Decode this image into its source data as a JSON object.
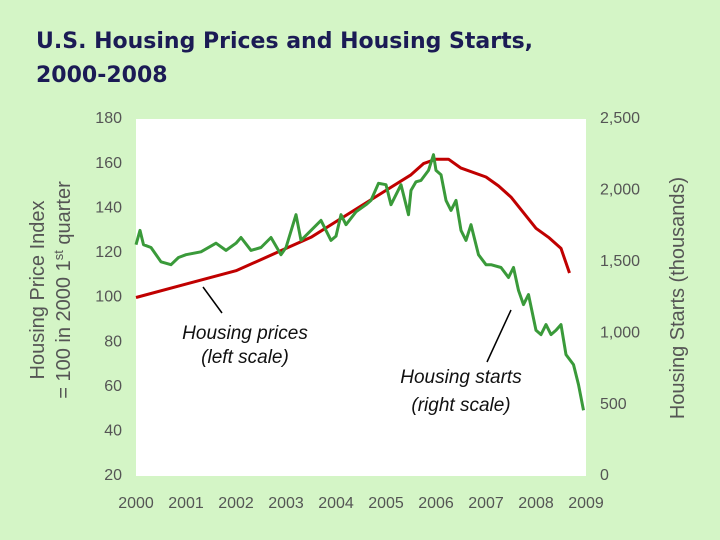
{
  "chart_data": {
    "type": "line",
    "title": [
      "U.S. Housing Prices and Housing Starts,",
      "2000-2008"
    ],
    "y_label": [
      "Housing Price Index",
      [
        "= 100 in 2000 1",
        "st",
        " quarter"
      ]
    ],
    "y2_label": "Housing Starts (thousands)",
    "xlim": [
      2000,
      2009
    ],
    "xticks": [
      2000,
      2001,
      2002,
      2003,
      2004,
      2005,
      2006,
      2007,
      2008,
      2009
    ],
    "ylim": [
      20,
      180
    ],
    "yticks": [
      20,
      40,
      60,
      80,
      100,
      120,
      140,
      160,
      180
    ],
    "y2lim": [
      0,
      2500
    ],
    "y2ticks": [
      0,
      500,
      {
        "value": 1000,
        "label": "1,000"
      },
      {
        "value": 1500,
        "label": "1,500"
      },
      {
        "value": 2000,
        "label": "2,000"
      },
      {
        "value": 2500,
        "label": "2,500"
      }
    ],
    "series": [
      {
        "color": "#c00000",
        "axis": "y",
        "x": [
          2000.0,
          2001.0,
          2002.0,
          2002.5,
          2003.0,
          2003.5,
          2004.0,
          2004.5,
          2005.0,
          2005.5,
          2005.75,
          2006.0,
          2006.25,
          2006.5,
          2007.0,
          2007.25,
          2007.5,
          2007.75,
          2008.0,
          2008.25,
          2008.5,
          2008.67
        ],
        "values": [
          100,
          106,
          112,
          117,
          122,
          127,
          134,
          141,
          148,
          155,
          160,
          162,
          162,
          158,
          154,
          150,
          145,
          138,
          131,
          127,
          122,
          111
        ]
      },
      {
        "color": "#3a9a3a",
        "axis": "y2",
        "x": [
          2000.0,
          2000.08,
          2000.15,
          2000.3,
          2000.5,
          2000.7,
          2000.85,
          2001.0,
          2001.3,
          2001.6,
          2001.8,
          2002.0,
          2002.1,
          2002.3,
          2002.5,
          2002.7,
          2002.9,
          2003.0,
          2003.2,
          2003.3,
          2003.5,
          2003.7,
          2003.9,
          2004.0,
          2004.1,
          2004.2,
          2004.4,
          2004.6,
          2004.7,
          2004.85,
          2005.0,
          2005.1,
          2005.2,
          2005.3,
          2005.45,
          2005.5,
          2005.6,
          2005.7,
          2005.85,
          2005.95,
          2006.0,
          2006.1,
          2006.2,
          2006.3,
          2006.4,
          2006.5,
          2006.6,
          2006.7,
          2006.85,
          2007.0,
          2007.1,
          2007.3,
          2007.45,
          2007.55,
          2007.65,
          2007.75,
          2007.85,
          2008.0,
          2008.1,
          2008.2,
          2008.3,
          2008.4,
          2008.5,
          2008.6,
          2008.75,
          2008.85,
          2008.95
        ],
        "values": [
          1620,
          1720,
          1620,
          1600,
          1500,
          1480,
          1530,
          1550,
          1570,
          1630,
          1580,
          1630,
          1670,
          1580,
          1600,
          1670,
          1550,
          1600,
          1830,
          1650,
          1720,
          1790,
          1650,
          1680,
          1830,
          1760,
          1850,
          1900,
          1930,
          2050,
          2040,
          1900,
          1970,
          2040,
          1830,
          2000,
          2060,
          2070,
          2140,
          2250,
          2140,
          2110,
          1930,
          1860,
          1930,
          1720,
          1650,
          1760,
          1550,
          1480,
          1480,
          1460,
          1390,
          1460,
          1300,
          1200,
          1270,
          1020,
          990,
          1060,
          990,
          1020,
          1060,
          850,
          780,
          640,
          460
        ]
      }
    ],
    "annotations": [
      [
        "Housing prices",
        "(left scale)"
      ],
      [
        "Housing starts",
        "(right scale)"
      ]
    ]
  }
}
